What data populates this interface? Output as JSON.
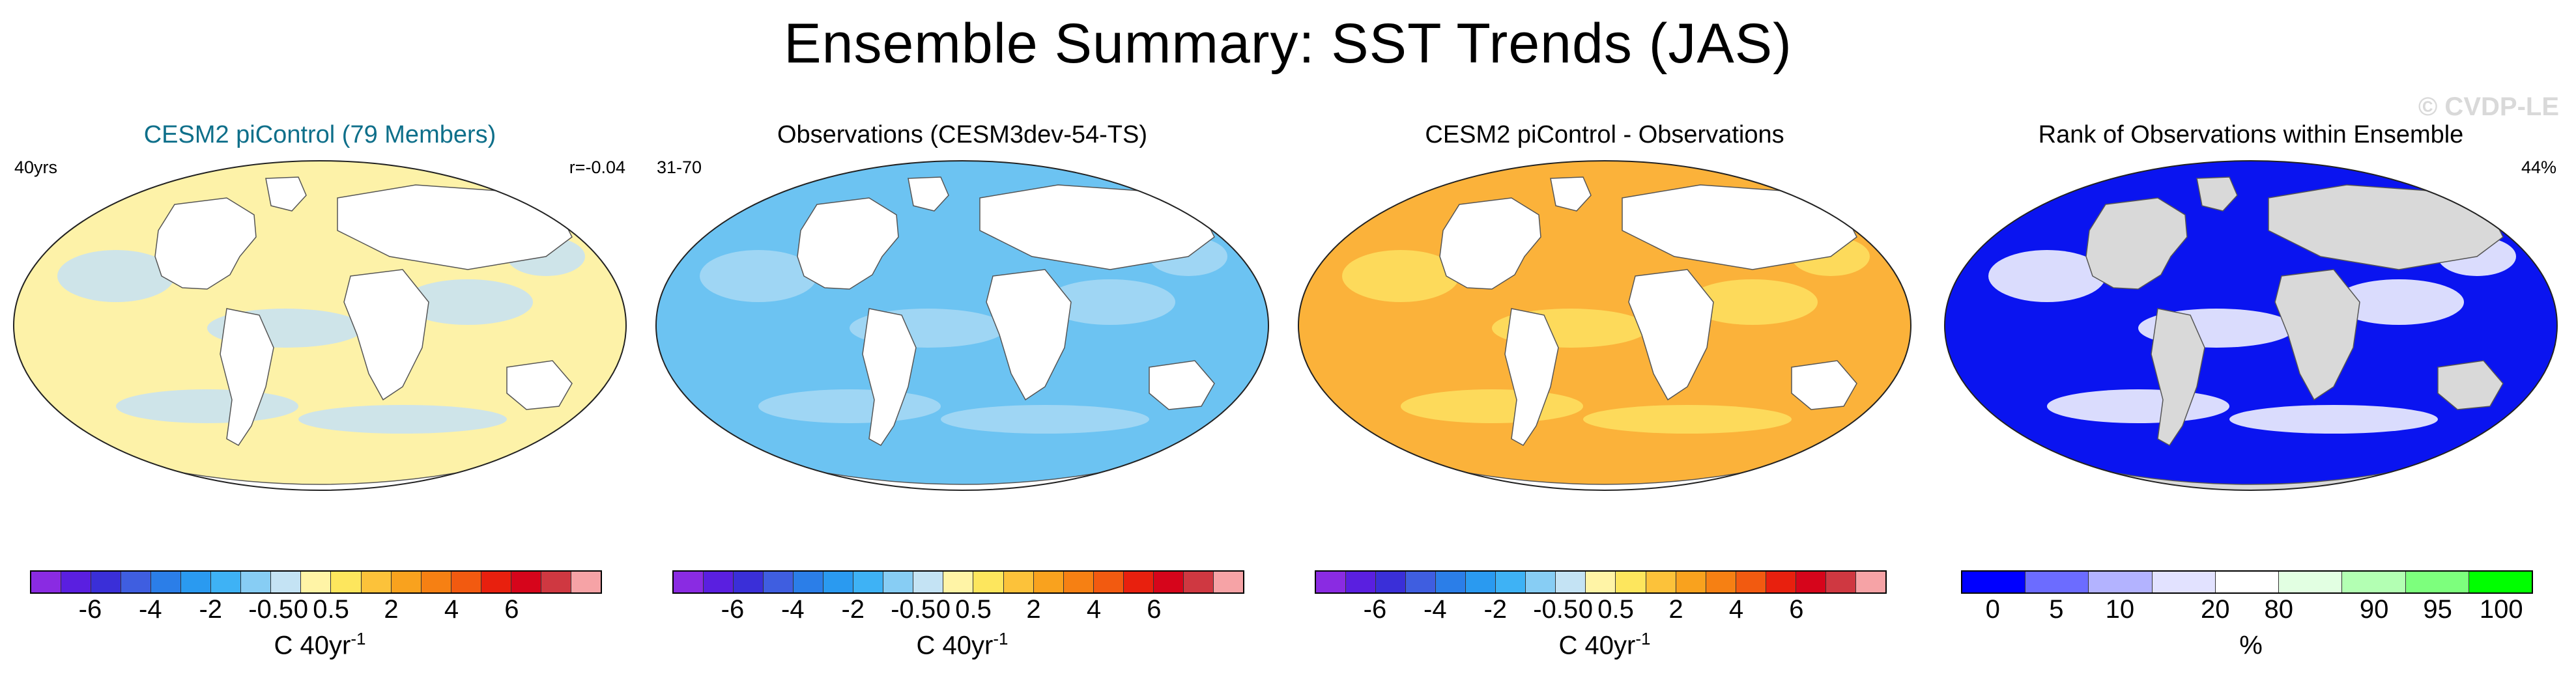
{
  "title": "Ensemble Summary: SST Trends (JAS)",
  "watermark": "© CVDP-LE",
  "panels": [
    {
      "title": "CESM2 piControl (79 Members)",
      "corner_left": "40yrs",
      "corner_right": "r=-0.04",
      "colorbar": {
        "ticks": [
          "-6",
          "-4",
          "-2",
          "-0.5",
          "0",
          "0.5",
          "2",
          "4",
          "6"
        ],
        "label": "C 40yr",
        "label_sup": "-1",
        "colors": [
          "#8a2be2",
          "#5a1fe0",
          "#3a2fd8",
          "#3f5ee0",
          "#2b7ee8",
          "#2a9af0",
          "#3eb2f5",
          "#87cdf4",
          "#c4e3f4",
          "#fff4a6",
          "#fde65d",
          "#fcc23a",
          "#f9a21e",
          "#f68013",
          "#f25a10",
          "#e8200e",
          "#d6051b",
          "#cf3841",
          "#f6a3a6"
        ]
      },
      "legend": {
        "ocean_dominant_color": "#fdf2a8",
        "ocean_secondary_color": "#c5e2f4"
      }
    },
    {
      "title": "Observations (CESM3dev-54-TS)",
      "corner_left": "31-70",
      "corner_right": "",
      "colorbar": {
        "ticks": [
          "-6",
          "-4",
          "-2",
          "-0.5",
          "0",
          "0.5",
          "2",
          "4",
          "6"
        ],
        "label": "C 40yr",
        "label_sup": "-1",
        "colors": [
          "#8a2be2",
          "#5a1fe0",
          "#3a2fd8",
          "#3f5ee0",
          "#2b7ee8",
          "#2a9af0",
          "#3eb2f5",
          "#87cdf4",
          "#c4e3f4",
          "#fff4a6",
          "#fde65d",
          "#fcc23a",
          "#f9a21e",
          "#f68013",
          "#f25a10",
          "#e8200e",
          "#d6051b",
          "#cf3841",
          "#f6a3a6"
        ]
      },
      "legend": {
        "ocean_dominant_color": "#6cc3f2",
        "ocean_secondary_color": "#a8d9f4"
      }
    },
    {
      "title": "CESM2 piControl - Observations",
      "corner_left": "",
      "corner_right": "",
      "colorbar": {
        "ticks": [
          "-6",
          "-4",
          "-2",
          "-0.5",
          "0",
          "0.5",
          "2",
          "4",
          "6"
        ],
        "label": "C 40yr",
        "label_sup": "-1",
        "colors": [
          "#8a2be2",
          "#5a1fe0",
          "#3a2fd8",
          "#3f5ee0",
          "#2b7ee8",
          "#2a9af0",
          "#3eb2f5",
          "#87cdf4",
          "#c4e3f4",
          "#fff4a6",
          "#fde65d",
          "#fcc23a",
          "#f9a21e",
          "#f68013",
          "#f25a10",
          "#e8200e",
          "#d6051b",
          "#cf3841",
          "#f6a3a6"
        ]
      },
      "legend": {
        "ocean_dominant_color": "#fbb23a",
        "ocean_secondary_color": "#fde162"
      }
    },
    {
      "title": "Rank of Observations within Ensemble",
      "corner_left": "",
      "corner_right": "44%",
      "colorbar": {
        "ticks": [
          "0",
          "5",
          "10",
          "20",
          "80",
          "90",
          "95",
          "100"
        ],
        "label": "%",
        "label_sup": "",
        "colors": [
          "#0000ff",
          "#6c6cff",
          "#b3b3ff",
          "#e2e2ff",
          "#ffffff",
          "#e2ffe2",
          "#b3ffb3",
          "#7dff7d",
          "#00ff00"
        ]
      },
      "legend": {
        "ocean_dominant_color": "#0a14f0",
        "ocean_secondary_color": "#ffffff"
      }
    }
  ]
}
